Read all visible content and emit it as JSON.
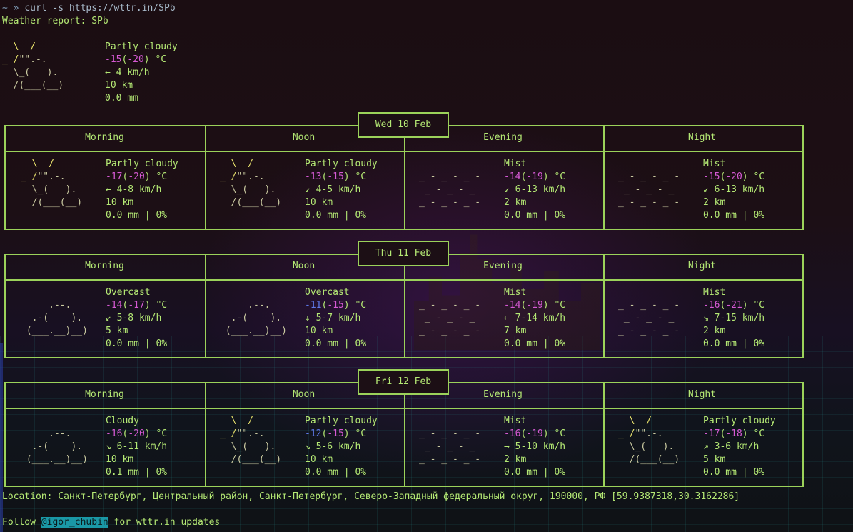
{
  "prompt": {
    "symbol": "~ »",
    "command": "curl -s https://wttr.in/SPb"
  },
  "report_title": "Weather report: SPb",
  "current": {
    "art": [
      "  \\  /       ",
      "_ /\"\".-.     ",
      "  \\_(   ).   ",
      "  /(___(__)  "
    ],
    "condition": "Partly cloudy",
    "temp": "-15",
    "feels": "-20",
    "temp_unit": " °C",
    "wind_dir": "←",
    "wind": "4 km/h",
    "visibility": "10 km",
    "precip": "0.0 mm"
  },
  "days": [
    {
      "date": "Wed 10 Feb",
      "periods": [
        {
          "name": "Morning",
          "art": [
            "  \\  /       ",
            "_ /\"\".-.     ",
            "  \\_(   ).   ",
            "  /(___(__)  "
          ],
          "condition": "Partly cloudy",
          "temp": "-17",
          "feels": "-20",
          "wind_dir": "←",
          "wind": "4-8 km/h",
          "visibility": "10 km",
          "precip": "0.0 mm | 0%"
        },
        {
          "name": "Noon",
          "art": [
            "  \\  /       ",
            "_ /\"\".-.     ",
            "  \\_(   ).   ",
            "  /(___(__)  "
          ],
          "condition": "Partly cloudy",
          "temp": "-13",
          "feels": "-15",
          "wind_dir": "↙",
          "wind": "4-5 km/h",
          "visibility": "10 km",
          "precip": "0.0 mm | 0%"
        },
        {
          "name": "Evening",
          "art": [
            "             ",
            "_ - _ - _ -  ",
            " _ - _ - _   ",
            "_ - _ - _ -  "
          ],
          "condition": "Mist",
          "temp": "-14",
          "feels": "-19",
          "wind_dir": "↙",
          "wind": "6-13 km/h",
          "visibility": "2 km",
          "precip": "0.0 mm | 0%"
        },
        {
          "name": "Night",
          "art": [
            "             ",
            "_ - _ - _ -  ",
            " _ - _ - _   ",
            "_ - _ - _ -  "
          ],
          "condition": "Mist",
          "temp": "-15",
          "feels": "-20",
          "wind_dir": "↙",
          "wind": "6-13 km/h",
          "visibility": "2 km",
          "precip": "0.0 mm | 0%"
        }
      ]
    },
    {
      "date": "Thu 11 Feb",
      "periods": [
        {
          "name": "Morning",
          "art": [
            "             ",
            "     .--.    ",
            "  .-(    ).  ",
            " (___.__)__) "
          ],
          "condition": "Overcast",
          "temp": "-14",
          "feels": "-17",
          "wind_dir": "↙",
          "wind": "5-8 km/h",
          "visibility": "5 km",
          "precip": "0.0 mm | 0%"
        },
        {
          "name": "Noon",
          "art": [
            "             ",
            "     .--.    ",
            "  .-(    ).  ",
            " (___.__)__) "
          ],
          "condition": "Overcast",
          "temp": "-11",
          "feels": "-15",
          "wind_dir": "↓",
          "wind": "5-7 km/h",
          "visibility": "10 km",
          "precip": "0.0 mm | 0%"
        },
        {
          "name": "Evening",
          "art": [
            "             ",
            "_ - _ - _ -  ",
            " _ - _ - _   ",
            "_ - _ - _ -  "
          ],
          "condition": "Mist",
          "temp": "-14",
          "feels": "-19",
          "wind_dir": "←",
          "wind": "7-14 km/h",
          "visibility": "7 km",
          "precip": "0.0 mm | 0%"
        },
        {
          "name": "Night",
          "art": [
            "             ",
            "_ - _ - _ -  ",
            " _ - _ - _   ",
            "_ - _ - _ -  "
          ],
          "condition": "Mist",
          "temp": "-16",
          "feels": "-21",
          "wind_dir": "↘",
          "wind": "7-15 km/h",
          "visibility": "2 km",
          "precip": "0.0 mm | 0%"
        }
      ]
    },
    {
      "date": "Fri 12 Feb",
      "periods": [
        {
          "name": "Morning",
          "art": [
            "             ",
            "     .--.    ",
            "  .-(    ).  ",
            " (___.__)__) "
          ],
          "condition": "Cloudy",
          "temp": "-16",
          "feels": "-20",
          "wind_dir": "↘",
          "wind": "6-11 km/h",
          "visibility": "10 km",
          "precip": "0.1 mm | 0%"
        },
        {
          "name": "Noon",
          "art": [
            "  \\  /       ",
            "_ /\"\".-.     ",
            "  \\_(   ).   ",
            "  /(___(__)  "
          ],
          "condition": "Partly cloudy",
          "temp": "-12",
          "feels": "-15",
          "wind_dir": "↘",
          "wind": "5-6 km/h",
          "visibility": "10 km",
          "precip": "0.0 mm | 0%"
        },
        {
          "name": "Evening",
          "art": [
            "             ",
            "_ - _ - _ -  ",
            " _ - _ - _   ",
            "_ - _ - _ -  "
          ],
          "condition": "Mist",
          "temp": "-16",
          "feels": "-19",
          "wind_dir": "→",
          "wind": "5-10 km/h",
          "visibility": "2 km",
          "precip": "0.0 mm | 0%"
        },
        {
          "name": "Night",
          "art": [
            "  \\  /       ",
            "_ /\"\".-.     ",
            "  \\_(   ).   ",
            "  /(___(__)  "
          ],
          "condition": "Partly cloudy",
          "temp": "-17",
          "feels": "-18",
          "wind_dir": "↗",
          "wind": "3-6 km/h",
          "visibility": "5 km",
          "precip": "0.0 mm | 0%"
        }
      ]
    }
  ],
  "location_line": "Location: Санкт-Петербург, Центральный район, Санкт-Петербург, Северо-Западный федеральный округ, 190000, РФ [59.9387318,30.3162286]",
  "follow": {
    "prefix": "Follow ",
    "handle": "@igor_chubin",
    "suffix": " for wttr.in updates"
  },
  "colors": {
    "text": "#b4e874",
    "border": "#9bd25a",
    "temp_magenta": "#d65ad4",
    "temp_blue": "#5f79e8",
    "sun_yellow": "#e7e16b",
    "handle_bg": "#1a98a6"
  }
}
